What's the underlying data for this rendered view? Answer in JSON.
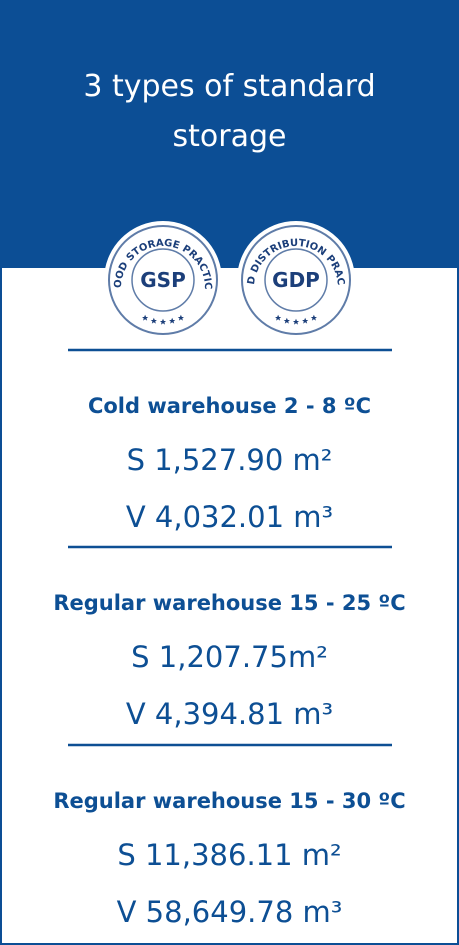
{
  "header": {
    "title_lines": [
      "3 types of standard",
      "storage"
    ]
  },
  "badges": [
    {
      "label": "GSP",
      "ring_text": "GOOD STORAGE PRACTICE"
    },
    {
      "label": "GDP",
      "ring_text": "GOOD DISTRIBUTION PRACTICE"
    }
  ],
  "warehouses": [
    {
      "name": "Cold warehouse 2 - 8 ºC",
      "area": "S 1,527.90 m²",
      "volume": "V 4,032.01 m³"
    },
    {
      "name": "Regular warehouse 15 - 25 ºC",
      "area": "S 1,207.75m²",
      "volume": "V 4,394.81 m³"
    },
    {
      "name": "Regular warehouse 15 - 30 ºC",
      "area": "S 11,386.11 m²",
      "volume": "V 58,649.78 m³"
    }
  ]
}
